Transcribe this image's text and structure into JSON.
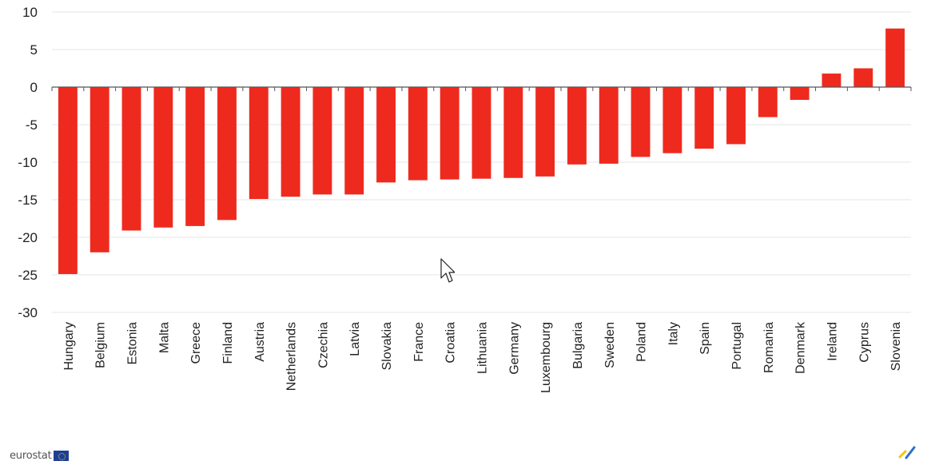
{
  "chart_data": {
    "type": "bar",
    "title": "",
    "xlabel": "",
    "ylabel": "",
    "ylim": [
      -30,
      10
    ],
    "yticks": [
      10,
      5,
      0,
      -5,
      -10,
      -15,
      -20,
      -25,
      -30
    ],
    "grid": true,
    "categories": [
      "Hungary",
      "Belgium",
      "Estonia",
      "Malta",
      "Greece",
      "Finland",
      "Austria",
      "Netherlands",
      "Czechia",
      "Latvia",
      "Slovakia",
      "France",
      "Croatia",
      "Lithuania",
      "Germany",
      "Luxembourg",
      "Bulgaria",
      "Sweden",
      "Poland",
      "Italy",
      "Spain",
      "Portugal",
      "Romania",
      "Denmark",
      "Ireland",
      "Cyprus",
      "Slovenia"
    ],
    "values": [
      -24.9,
      -22.0,
      -19.1,
      -18.7,
      -18.5,
      -17.7,
      -14.9,
      -14.6,
      -14.3,
      -14.3,
      -12.7,
      -12.4,
      -12.3,
      -12.2,
      -12.1,
      -11.9,
      -10.3,
      -10.2,
      -9.3,
      -8.8,
      -8.2,
      -7.6,
      -4.0,
      -1.7,
      1.8,
      2.5,
      7.8
    ],
    "bar_color": "#ee2a1e"
  },
  "footer": {
    "logo_text": "eurostat",
    "flag_color": "#1d3f94",
    "brand_mark_colors": [
      "#f5c400",
      "#2f6fc6"
    ]
  }
}
